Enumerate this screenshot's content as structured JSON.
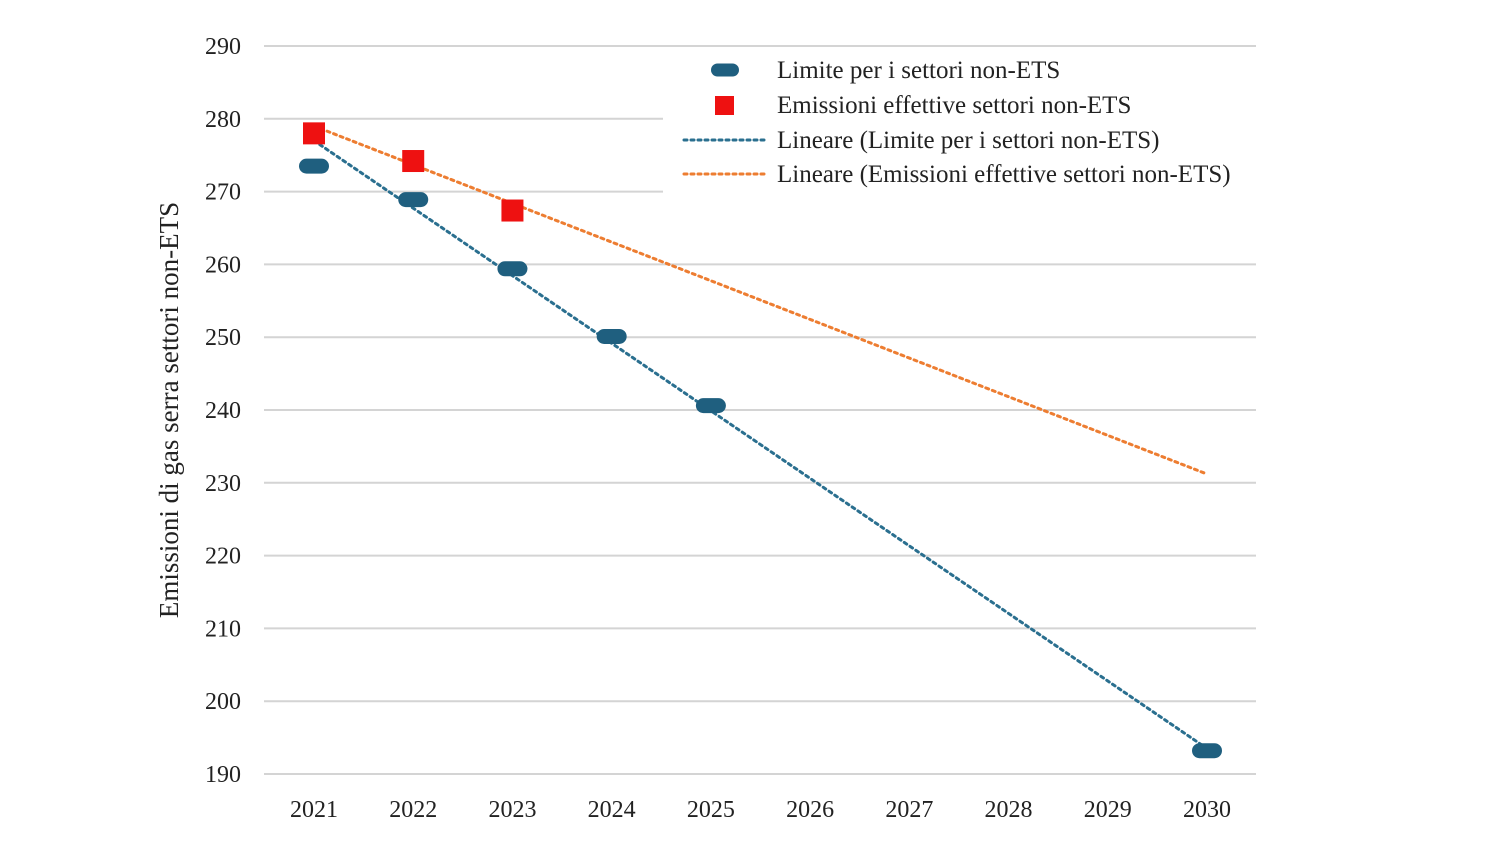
{
  "chart_data": {
    "type": "scatter",
    "title": "",
    "xlabel": "",
    "ylabel": "Emissioni di gas serra settori non-ETS",
    "x": [
      2021,
      2022,
      2023,
      2024,
      2025,
      2026,
      2027,
      2028,
      2029,
      2030
    ],
    "x_tick_labels": [
      "2021",
      "2022",
      "2023",
      "2024",
      "2025",
      "2026",
      "2027",
      "2028",
      "2029",
      "2030"
    ],
    "ylim": [
      190,
      290
    ],
    "y_ticks": [
      190,
      200,
      210,
      220,
      230,
      240,
      250,
      260,
      270,
      280,
      290
    ],
    "y_tick_labels": [
      "190",
      "200",
      "210",
      "220",
      "230",
      "240",
      "250",
      "260",
      "270",
      "280",
      "290"
    ],
    "grid": "horizontal",
    "legend_position": "top-right",
    "series": [
      {
        "name": "Limite per i settori non-ETS",
        "marker": "rounded-bar",
        "color": "#1f5f7f",
        "points": [
          {
            "x": 2021,
            "y": 273.5
          },
          {
            "x": 2022,
            "y": 268.9
          },
          {
            "x": 2023,
            "y": 259.4
          },
          {
            "x": 2024,
            "y": 250.1
          },
          {
            "x": 2025,
            "y": 240.6
          },
          {
            "x": 2030,
            "y": 193.2
          }
        ]
      },
      {
        "name": "Emissioni effettive settori non-ETS",
        "marker": "square",
        "color": "#ee1111",
        "points": [
          {
            "x": 2021,
            "y": 278.0
          },
          {
            "x": 2022,
            "y": 274.2
          },
          {
            "x": 2023,
            "y": 267.4
          }
        ]
      }
    ],
    "trendlines": [
      {
        "name": "Lineare (Limite per i settori non-ETS)",
        "style": "dotted",
        "color": "#2a6f8f",
        "from": {
          "x": 2021,
          "y": 277.0
        },
        "to": {
          "x": 2030,
          "y": 193.5
        }
      },
      {
        "name": "Lineare (Emissioni effettive settori non-ETS)",
        "style": "dotted",
        "color": "#ed7d31",
        "from": {
          "x": 2021,
          "y": 279.0
        },
        "to": {
          "x": 2030,
          "y": 231.2
        }
      }
    ]
  }
}
